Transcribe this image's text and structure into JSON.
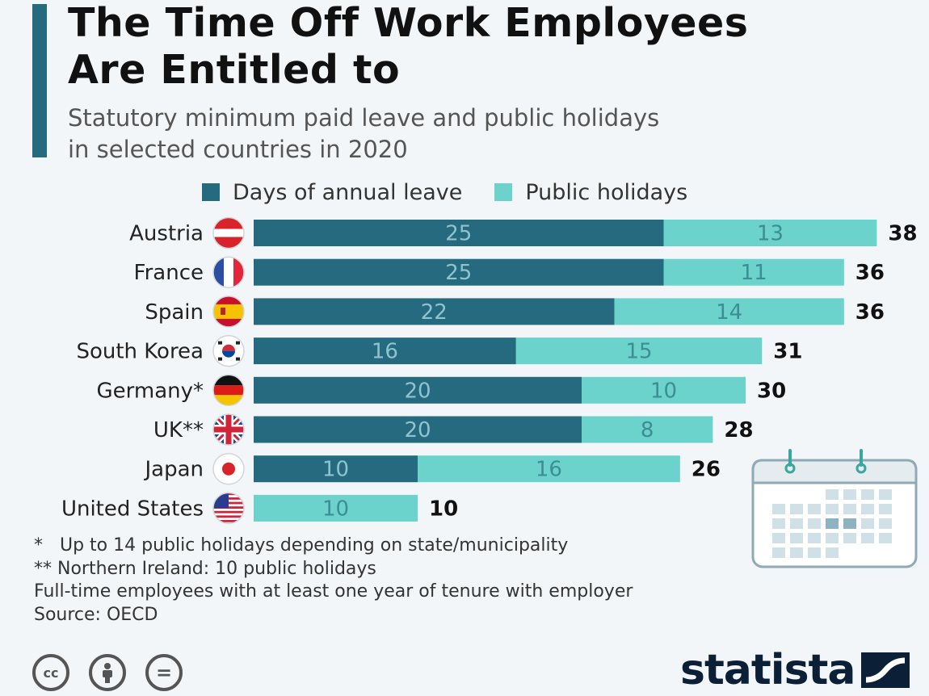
{
  "header": {
    "title": "The Time Off Work Employees\nAre Entitled to",
    "subtitle": "Statutory minimum paid leave and public holidays\nin selected countries in 2020"
  },
  "legend": {
    "leave_label": "Days of annual leave",
    "holidays_label": "Public holidays"
  },
  "colors": {
    "leave": "#256a7e",
    "holidays": "#6bd3cc",
    "accent": "#256a7e",
    "brand": "#0b2036"
  },
  "chart_data": {
    "type": "bar",
    "orientation": "horizontal",
    "stacked": true,
    "title": "The Time Off Work Employees Are Entitled to",
    "subtitle": "Statutory minimum paid leave and public holidays in selected countries in 2020",
    "categories": [
      "Austria",
      "France",
      "Spain",
      "South Korea",
      "Germany*",
      "UK**",
      "Japan",
      "United States"
    ],
    "series": [
      {
        "name": "Days of annual leave",
        "values": [
          25,
          25,
          22,
          16,
          20,
          20,
          10,
          0
        ]
      },
      {
        "name": "Public holidays",
        "values": [
          13,
          11,
          14,
          15,
          10,
          8,
          16,
          10
        ]
      }
    ],
    "totals": [
      38,
      36,
      36,
      31,
      30,
      28,
      26,
      10
    ],
    "xlim": [
      0,
      38
    ],
    "grid": false,
    "legend": "top"
  },
  "flags": [
    "austria-flag-icon",
    "france-flag-icon",
    "spain-flag-icon",
    "south-korea-flag-icon",
    "germany-flag-icon",
    "uk-flag-icon",
    "japan-flag-icon",
    "us-flag-icon"
  ],
  "footnotes": {
    "note1": "*   Up to 14 public holidays depending on state/municipality",
    "note2": "** Northern Ireland: 10 public holidays",
    "note3": "Full-time employees with at least one year of tenure with employer",
    "source": "Source: OECD"
  },
  "license": {
    "cc": "cc",
    "equals": "="
  },
  "brand": {
    "name": "statista"
  }
}
